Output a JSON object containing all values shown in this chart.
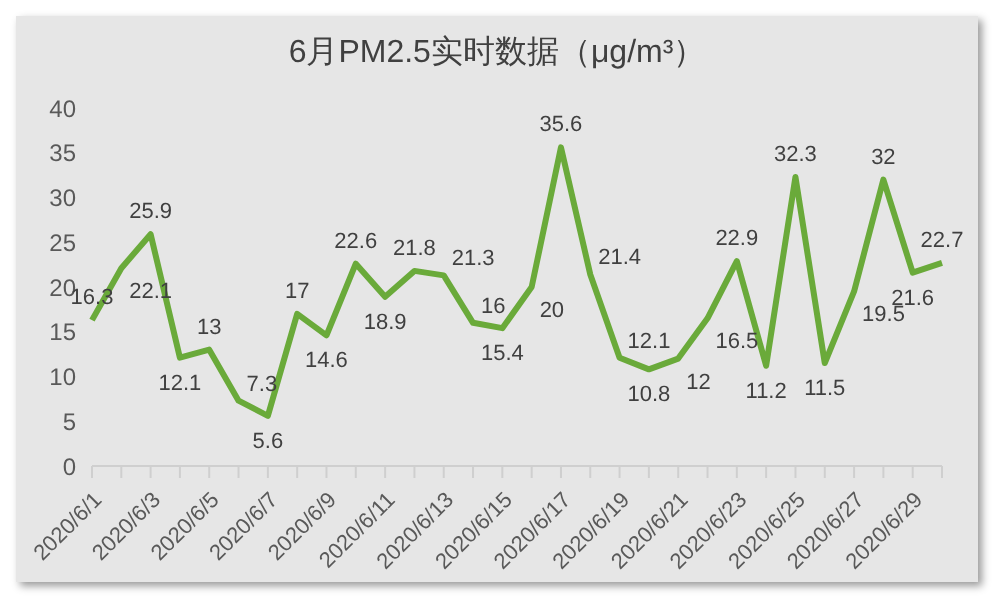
{
  "chart_data": {
    "type": "line",
    "title": "6月PM2.5实时数据（μg/m³）",
    "categories": [
      "2020/6/1",
      null,
      "2020/6/3",
      null,
      "2020/6/5",
      null,
      "2020/6/7",
      null,
      "2020/6/9",
      null,
      "2020/6/11",
      null,
      "2020/6/13",
      null,
      "2020/6/15",
      null,
      "2020/6/17",
      null,
      "2020/6/19",
      null,
      "2020/6/21",
      null,
      "2020/6/23",
      null,
      "2020/6/25",
      null,
      "2020/6/27",
      null,
      "2020/6/29",
      null
    ],
    "series": [
      {
        "color": "#6aaa3a",
        "values": [
          16.3,
          22.1,
          25.9,
          12.1,
          13,
          7.3,
          5.6,
          17,
          14.6,
          22.6,
          18.9,
          21.8,
          21.3,
          16,
          15.4,
          20,
          35.6,
          21.4,
          12.1,
          10.8,
          12,
          16.5,
          22.9,
          11.2,
          32.3,
          11.5,
          19.5,
          32,
          21.6,
          22.7
        ]
      }
    ],
    "ylim": [
      0,
      40
    ],
    "yticks": [
      0,
      5,
      10,
      15,
      20,
      25,
      30,
      35,
      40
    ],
    "grid": false,
    "legend": false,
    "marker": "none",
    "data_labels": true
  }
}
